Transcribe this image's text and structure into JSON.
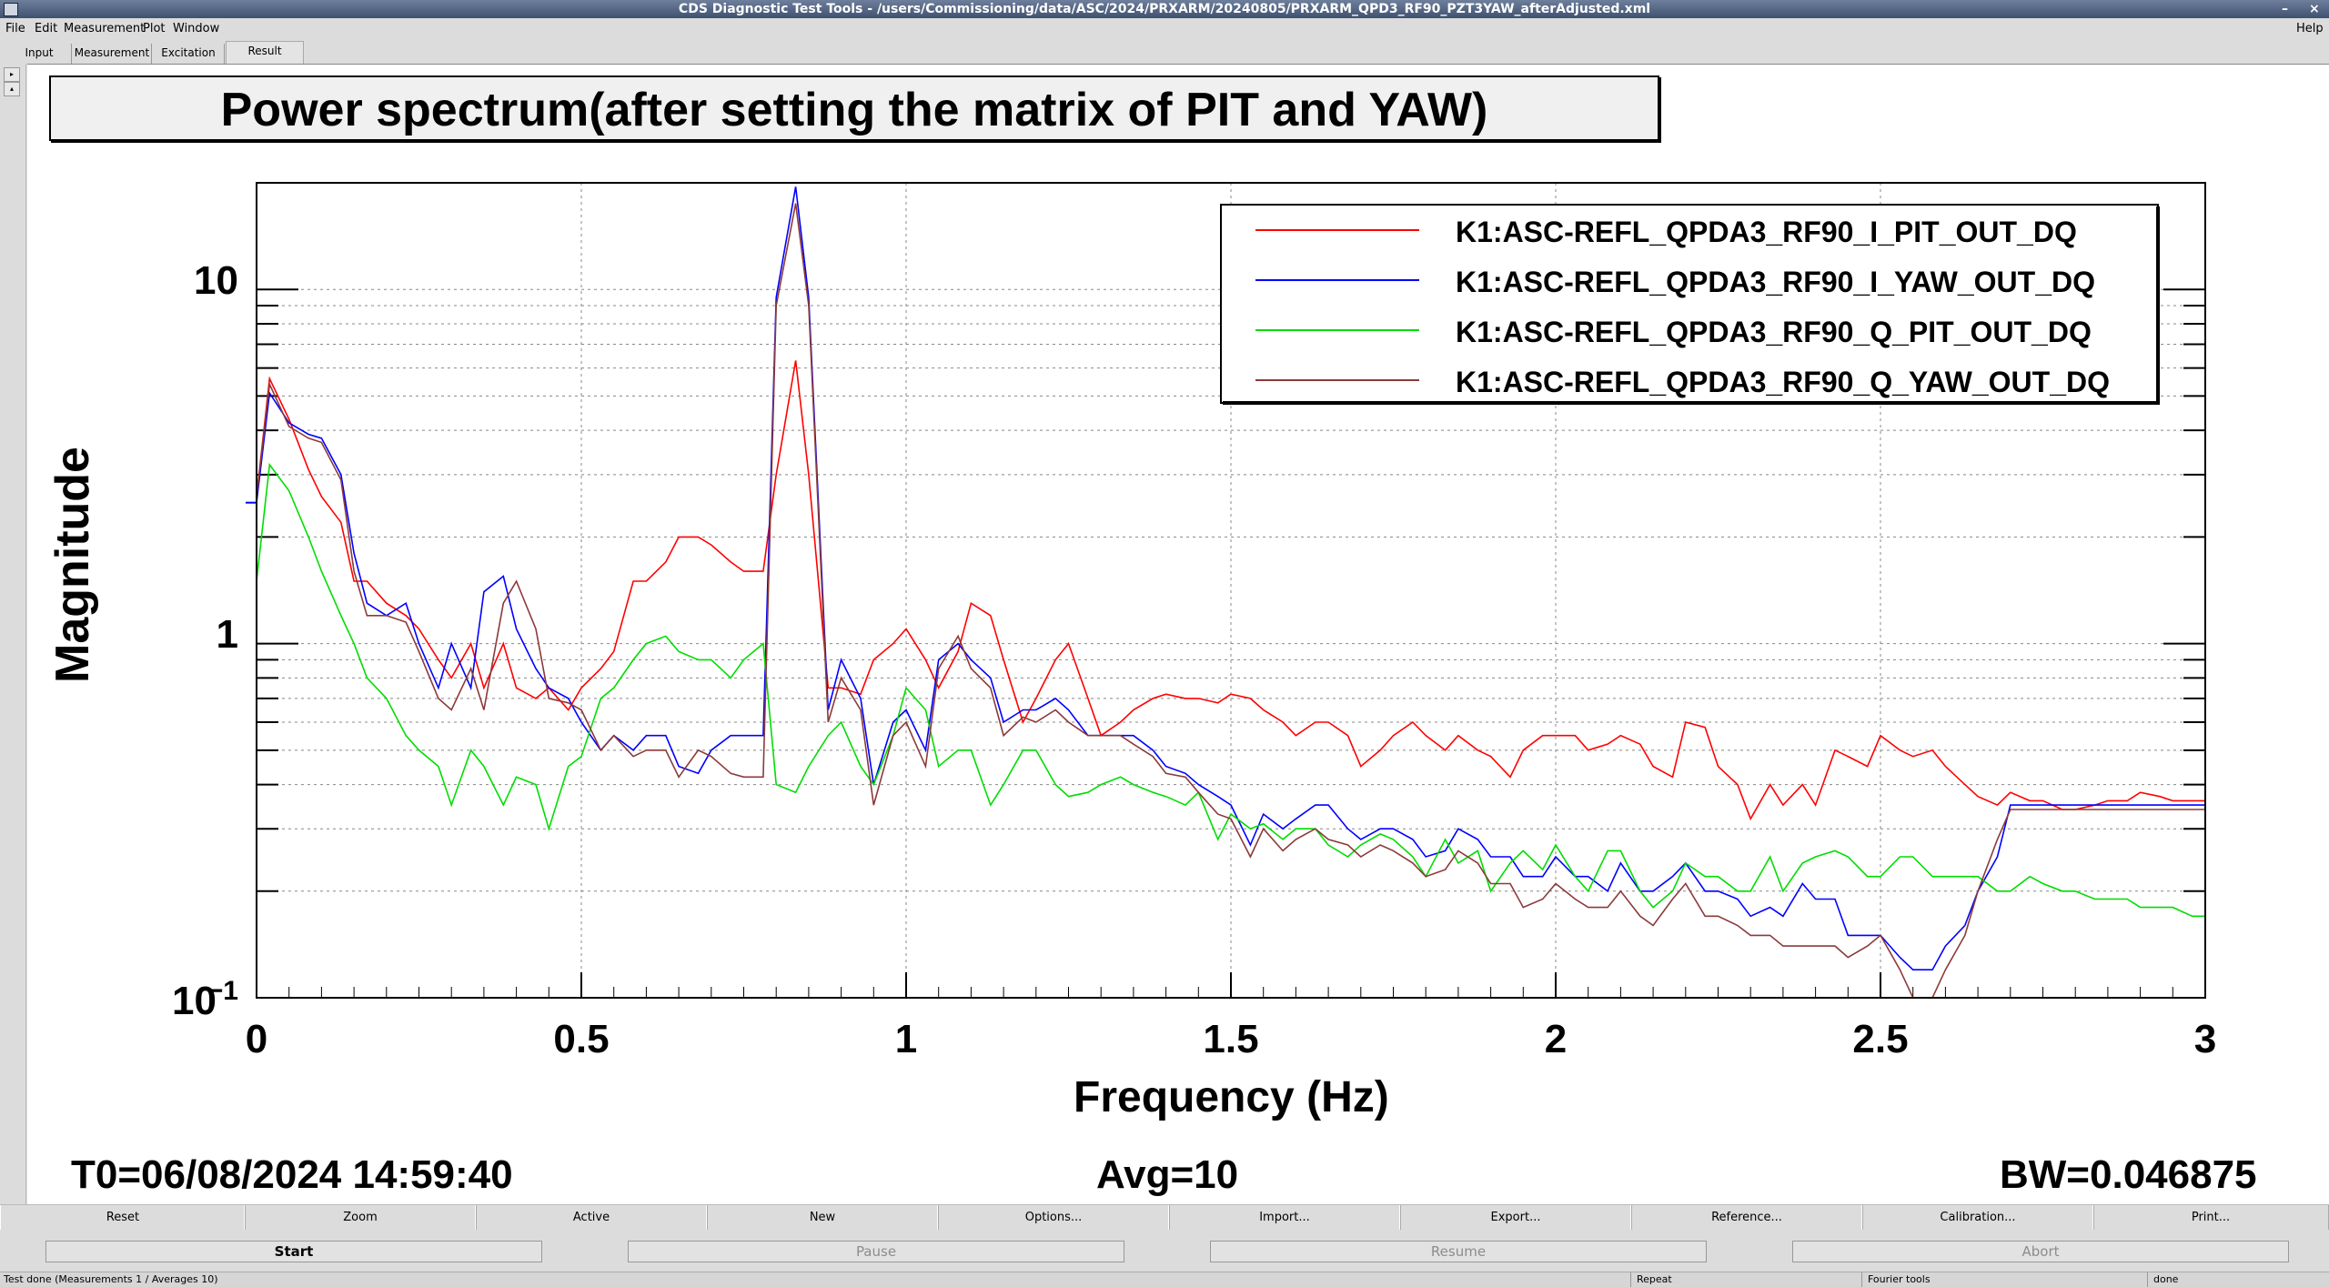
{
  "window": {
    "title": "CDS Diagnostic Test Tools - /users/Commissioning/data/ASC/2024/PRXARM/20240805/PRXARM_QPD3_RF90_PZT3YAW_afterAdjusted.xml",
    "minimize": "–",
    "close": "×"
  },
  "menu": {
    "file": "File",
    "edit": "Edit",
    "measurement": "Measurement",
    "plot": "Plot",
    "window": "Window",
    "help": "Help"
  },
  "tabs": [
    "Input",
    "Measurement",
    "Excitation",
    "Result"
  ],
  "sidebar": {
    "expand": "▸",
    "collapse": "▴"
  },
  "plot": {
    "title": "Power spectrum(after setting the matrix of PIT and YAW)",
    "ylabel": "Magnitude",
    "xlabel": "Frequency (Hz)",
    "xticks": [
      "0",
      "0.5",
      "1",
      "1.5",
      "2",
      "2.5",
      "3"
    ],
    "yticks": {
      "ten": "10",
      "one": "1",
      "base": "10",
      "exp": "−1"
    },
    "t0": "T0=06/08/2024 14:59:40",
    "avg": "Avg=10",
    "bw": "BW=0.046875"
  },
  "chart_data": {
    "type": "line",
    "title": "Power spectrum(after setting the matrix of PIT and YAW)",
    "xlabel": "Frequency (Hz)",
    "ylabel": "Magnitude",
    "xlim": [
      0,
      3
    ],
    "ylim": [
      0.1,
      20
    ],
    "yscale": "log",
    "grid": true,
    "legend": "top-right",
    "x": [
      0.0,
      0.02,
      0.05,
      0.08,
      0.1,
      0.13,
      0.15,
      0.17,
      0.2,
      0.23,
      0.25,
      0.28,
      0.3,
      0.33,
      0.35,
      0.38,
      0.4,
      0.43,
      0.45,
      0.48,
      0.5,
      0.53,
      0.55,
      0.58,
      0.6,
      0.63,
      0.65,
      0.68,
      0.7,
      0.73,
      0.75,
      0.78,
      0.8,
      0.83,
      0.85,
      0.88,
      0.9,
      0.93,
      0.95,
      0.98,
      1.0,
      1.03,
      1.05,
      1.08,
      1.1,
      1.13,
      1.15,
      1.18,
      1.2,
      1.23,
      1.25,
      1.28,
      1.3,
      1.33,
      1.35,
      1.38,
      1.4,
      1.43,
      1.45,
      1.48,
      1.5,
      1.53,
      1.55,
      1.58,
      1.6,
      1.63,
      1.65,
      1.68,
      1.7,
      1.73,
      1.75,
      1.78,
      1.8,
      1.83,
      1.85,
      1.88,
      1.9,
      1.93,
      1.95,
      1.98,
      2.0,
      2.03,
      2.05,
      2.08,
      2.1,
      2.13,
      2.15,
      2.18,
      2.2,
      2.23,
      2.25,
      2.28,
      2.3,
      2.33,
      2.35,
      2.38,
      2.4,
      2.43,
      2.45,
      2.48,
      2.5,
      2.53,
      2.55,
      2.58,
      2.6,
      2.63,
      2.65,
      2.68,
      2.7,
      2.73,
      2.75,
      2.78,
      2.8,
      2.83,
      2.85,
      2.88,
      2.9,
      2.93,
      2.95,
      2.98,
      3.0
    ],
    "series": [
      {
        "name": "K1:ASC-REFL_QPDA3_RF90_I_PIT_OUT_DQ",
        "color": "#ff0000",
        "values": [
          2.6,
          5.6,
          4.3,
          3.1,
          2.6,
          2.2,
          1.5,
          1.5,
          1.3,
          1.2,
          1.1,
          0.9,
          0.8,
          1.0,
          0.75,
          1.0,
          0.75,
          0.7,
          0.75,
          0.65,
          0.75,
          0.85,
          0.95,
          1.5,
          1.5,
          1.7,
          2.0,
          2.0,
          1.9,
          1.7,
          1.6,
          1.6,
          3.0,
          6.3,
          3.0,
          0.75,
          0.75,
          0.72,
          0.9,
          1.0,
          1.1,
          0.9,
          0.75,
          0.95,
          1.3,
          1.2,
          0.9,
          0.6,
          0.7,
          0.9,
          1.0,
          0.7,
          0.55,
          0.6,
          0.65,
          0.7,
          0.72,
          0.7,
          0.7,
          0.68,
          0.72,
          0.7,
          0.65,
          0.6,
          0.55,
          0.6,
          0.6,
          0.55,
          0.45,
          0.5,
          0.55,
          0.6,
          0.55,
          0.5,
          0.55,
          0.5,
          0.48,
          0.42,
          0.5,
          0.55,
          0.55,
          0.55,
          0.5,
          0.52,
          0.55,
          0.52,
          0.45,
          0.42,
          0.6,
          0.58,
          0.45,
          0.4,
          0.32,
          0.4,
          0.35,
          0.4,
          0.35,
          0.5,
          0.48,
          0.45,
          0.55,
          0.5,
          0.48,
          0.5,
          0.45,
          0.4,
          0.37,
          0.35,
          0.38,
          0.36,
          0.36,
          0.34,
          0.34,
          0.35,
          0.36,
          0.36,
          0.38,
          0.37,
          0.36,
          0.36,
          0.36
        ]
      },
      {
        "name": "K1:ASC-REFL_QPDA3_RF90_I_YAW_OUT_DQ",
        "color": "#0000ff",
        "values": [
          2.5,
          5.1,
          4.2,
          3.9,
          3.8,
          3.0,
          1.8,
          1.3,
          1.2,
          1.3,
          1.0,
          0.75,
          1.0,
          0.75,
          1.4,
          1.55,
          1.1,
          0.85,
          0.75,
          0.7,
          0.6,
          0.5,
          0.55,
          0.5,
          0.55,
          0.55,
          0.45,
          0.43,
          0.5,
          0.55,
          0.55,
          0.55,
          9.5,
          19.5,
          9.5,
          0.65,
          0.9,
          0.7,
          0.4,
          0.6,
          0.65,
          0.5,
          0.9,
          1.0,
          0.9,
          0.8,
          0.6,
          0.65,
          0.65,
          0.7,
          0.65,
          0.55,
          0.55,
          0.55,
          0.55,
          0.5,
          0.45,
          0.43,
          0.4,
          0.37,
          0.35,
          0.27,
          0.33,
          0.3,
          0.32,
          0.35,
          0.35,
          0.3,
          0.28,
          0.3,
          0.3,
          0.28,
          0.25,
          0.26,
          0.3,
          0.28,
          0.25,
          0.25,
          0.22,
          0.22,
          0.25,
          0.22,
          0.22,
          0.2,
          0.24,
          0.2,
          0.2,
          0.22,
          0.24,
          0.2,
          0.2,
          0.19,
          0.17,
          0.18,
          0.17,
          0.21,
          0.19,
          0.19,
          0.15,
          0.15,
          0.15,
          0.13,
          0.12,
          0.12,
          0.14,
          0.16,
          0.2,
          0.25,
          0.35,
          0.35,
          0.35,
          0.35,
          0.35,
          0.35,
          0.35,
          0.35,
          0.35,
          0.35,
          0.35,
          0.35,
          0.35
        ]
      },
      {
        "name": "K1:ASC-REFL_QPDA3_RF90_Q_PIT_OUT_DQ",
        "color": "#00dd00",
        "values": [
          1.5,
          3.2,
          2.7,
          2.0,
          1.6,
          1.2,
          1.0,
          0.8,
          0.7,
          0.55,
          0.5,
          0.45,
          0.35,
          0.5,
          0.45,
          0.35,
          0.42,
          0.4,
          0.3,
          0.45,
          0.48,
          0.7,
          0.75,
          0.9,
          1.0,
          1.05,
          0.95,
          0.9,
          0.9,
          0.8,
          0.9,
          1.0,
          0.4,
          0.38,
          0.45,
          0.55,
          0.6,
          0.45,
          0.4,
          0.55,
          0.75,
          0.65,
          0.45,
          0.5,
          0.5,
          0.35,
          0.4,
          0.5,
          0.5,
          0.4,
          0.37,
          0.38,
          0.4,
          0.42,
          0.4,
          0.38,
          0.37,
          0.35,
          0.38,
          0.28,
          0.33,
          0.3,
          0.31,
          0.28,
          0.3,
          0.3,
          0.27,
          0.25,
          0.27,
          0.29,
          0.28,
          0.25,
          0.22,
          0.28,
          0.24,
          0.26,
          0.2,
          0.24,
          0.26,
          0.23,
          0.27,
          0.22,
          0.2,
          0.26,
          0.26,
          0.2,
          0.18,
          0.2,
          0.24,
          0.22,
          0.22,
          0.2,
          0.2,
          0.25,
          0.2,
          0.24,
          0.25,
          0.26,
          0.25,
          0.22,
          0.22,
          0.25,
          0.25,
          0.22,
          0.22,
          0.22,
          0.22,
          0.2,
          0.2,
          0.22,
          0.21,
          0.2,
          0.2,
          0.19,
          0.19,
          0.19,
          0.18,
          0.18,
          0.18,
          0.17,
          0.17
        ]
      },
      {
        "name": "K1:ASC-REFL_QPDA3_RF90_Q_YAW_OUT_DQ",
        "color": "#8b3a3a",
        "values": [
          2.6,
          5.4,
          4.1,
          3.8,
          3.7,
          2.9,
          1.6,
          1.2,
          1.2,
          1.15,
          0.95,
          0.7,
          0.65,
          0.85,
          0.65,
          1.3,
          1.5,
          1.1,
          0.7,
          0.68,
          0.65,
          0.5,
          0.55,
          0.48,
          0.5,
          0.5,
          0.42,
          0.5,
          0.48,
          0.43,
          0.42,
          0.42,
          9.0,
          17.5,
          9.0,
          0.6,
          0.8,
          0.65,
          0.35,
          0.55,
          0.6,
          0.45,
          0.85,
          1.05,
          0.85,
          0.75,
          0.55,
          0.62,
          0.6,
          0.65,
          0.6,
          0.55,
          0.55,
          0.55,
          0.52,
          0.48,
          0.43,
          0.42,
          0.38,
          0.33,
          0.32,
          0.25,
          0.3,
          0.26,
          0.28,
          0.3,
          0.28,
          0.27,
          0.25,
          0.27,
          0.26,
          0.24,
          0.22,
          0.23,
          0.26,
          0.24,
          0.21,
          0.21,
          0.18,
          0.19,
          0.21,
          0.19,
          0.18,
          0.18,
          0.2,
          0.17,
          0.16,
          0.19,
          0.21,
          0.17,
          0.17,
          0.16,
          0.15,
          0.15,
          0.14,
          0.14,
          0.14,
          0.14,
          0.13,
          0.14,
          0.15,
          0.12,
          0.1,
          0.1,
          0.12,
          0.15,
          0.2,
          0.28,
          0.34,
          0.34,
          0.34,
          0.34,
          0.34,
          0.34,
          0.34,
          0.34,
          0.34,
          0.34,
          0.34,
          0.34,
          0.34
        ]
      }
    ]
  },
  "buttons_row1": [
    "Reset",
    "Zoom",
    "Active",
    "New",
    "Options...",
    "Import...",
    "Export...",
    "Reference...",
    "Calibration...",
    "Print..."
  ],
  "buttons_row2": [
    "Start",
    "Pause",
    "Resume",
    "Abort"
  ],
  "status": {
    "main": "Test done (Measurements 1 / Averages 10)",
    "repeat": "Repeat",
    "tool": "Fourier tools",
    "state": "done"
  }
}
